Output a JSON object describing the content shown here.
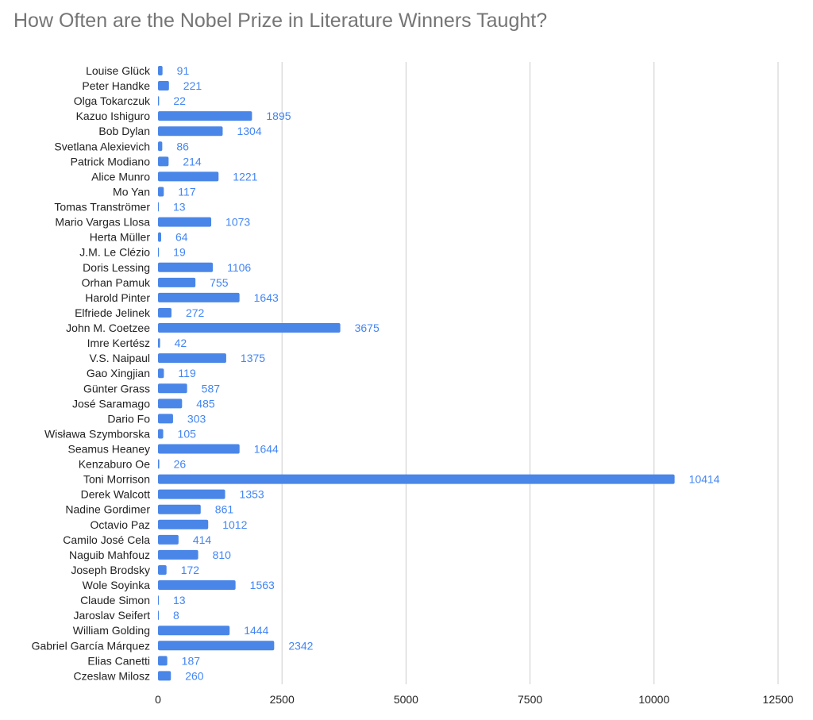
{
  "chart_data": {
    "type": "bar",
    "orientation": "horizontal",
    "title": "How Often are the Nobel Prize in Literature Winners Taught?",
    "categories": [
      "Louise Glück",
      "Peter Handke",
      "Olga Tokarczuk",
      "Kazuo Ishiguro",
      "Bob Dylan",
      "Svetlana Alexievich",
      "Patrick Modiano",
      "Alice Munro",
      "Mo Yan",
      "Tomas Tranströmer",
      "Mario Vargas Llosa",
      "Herta Müller",
      "J.M. Le Clézio",
      "Doris Lessing",
      "Orhan Pamuk",
      "Harold Pinter",
      "Elfriede Jelinek",
      "John M. Coetzee",
      "Imre Kertész",
      "V.S. Naipaul",
      "Gao Xingjian",
      "Günter Grass",
      "José Saramago",
      "Dario Fo",
      "Wisława Szymborska",
      "Seamus Heaney",
      "Kenzaburo Oe",
      "Toni Morrison",
      "Derek Walcott",
      "Nadine Gordimer",
      "Octavio Paz",
      "Camilo José Cela",
      "Naguib Mahfouz",
      "Joseph Brodsky",
      "Wole Soyinka",
      "Claude Simon",
      "Jaroslav Seifert",
      "William Golding",
      "Gabriel García Márquez",
      "Elias Canetti",
      "Czeslaw Milosz"
    ],
    "values": [
      91,
      221,
      22,
      1895,
      1304,
      86,
      214,
      1221,
      117,
      13,
      1073,
      64,
      19,
      1106,
      755,
      1643,
      272,
      3675,
      42,
      1375,
      119,
      587,
      485,
      303,
      105,
      1644,
      26,
      10414,
      1353,
      861,
      1012,
      414,
      810,
      172,
      1563,
      13,
      8,
      1444,
      2342,
      187,
      260
    ],
    "xlim": [
      0,
      12500
    ],
    "xticks": [
      0,
      2500,
      5000,
      7500,
      10000,
      12500
    ],
    "grid": "vertical",
    "bar_color": "#4a86e8",
    "label_color": "#4285f4",
    "data_labels": true,
    "legend": "none"
  }
}
